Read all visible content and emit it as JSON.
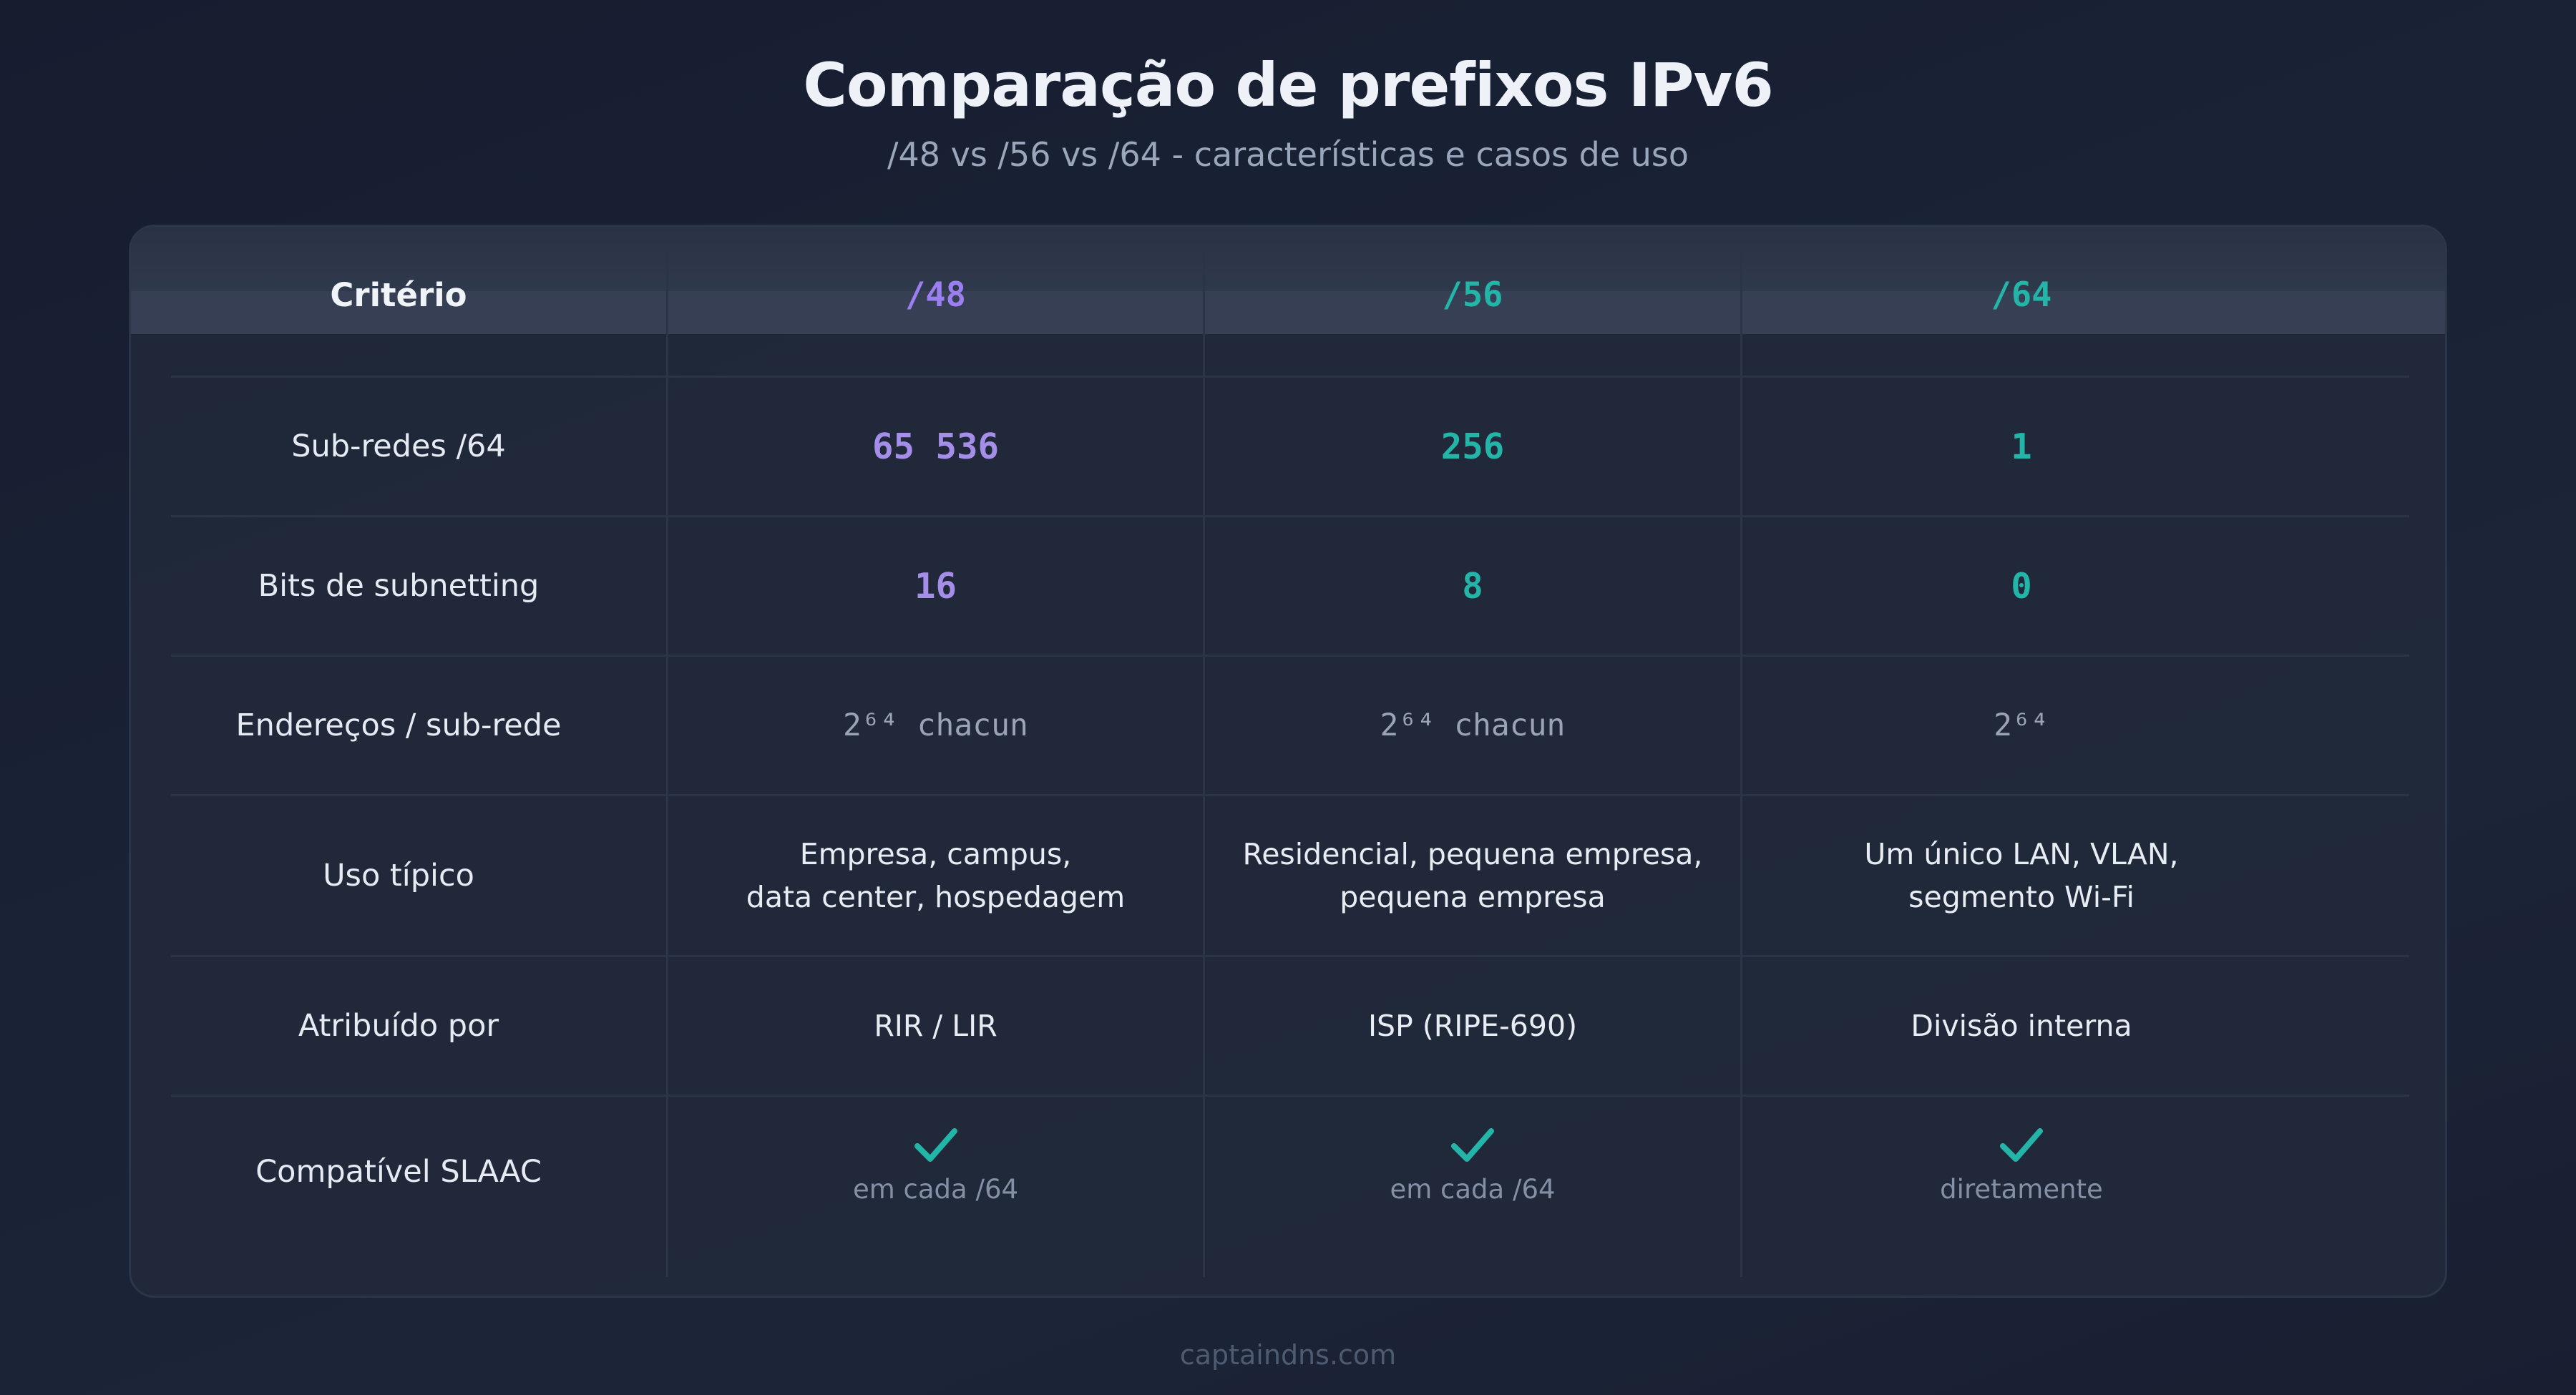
{
  "title": "Comparação de prefixos IPv6",
  "subtitle": "/48 vs /56 vs /64 - características e casos de uso",
  "colors": {
    "purple": "#9b7ff0",
    "purple_values": "#a48ee8",
    "teal": "#22b5a8",
    "background": "#1a2236"
  },
  "table": {
    "headers": [
      "Critério",
      "/48",
      "/56",
      "/64"
    ],
    "rows": [
      {
        "criterion": "Sub-redes /64",
        "cells": [
          "65 536",
          "256",
          "1"
        ]
      },
      {
        "criterion": "Bits de subnetting",
        "cells": [
          "16",
          "8",
          "0"
        ]
      },
      {
        "criterion": "Endereços / sub-rede",
        "cells": [
          "2⁶⁴ chacun",
          "2⁶⁴ chacun",
          "2⁶⁴"
        ]
      },
      {
        "criterion": "Uso típico",
        "cells": [
          [
            "Empresa, campus,",
            "data center, hospedagem"
          ],
          [
            "Residencial, pequena empresa,",
            "pequena empresa"
          ],
          [
            "Um único LAN, VLAN,",
            "segmento Wi-Fi"
          ]
        ]
      },
      {
        "criterion": "Atribuído por",
        "cells": [
          "RIR / LIR",
          "ISP (RIPE-690)",
          "Divisão interna"
        ]
      },
      {
        "criterion": "Compatível SLAAC",
        "icon": "check-icon",
        "notes": [
          "em cada /64",
          "em cada /64",
          "diretamente"
        ]
      }
    ]
  },
  "footer": "captaindns.com"
}
